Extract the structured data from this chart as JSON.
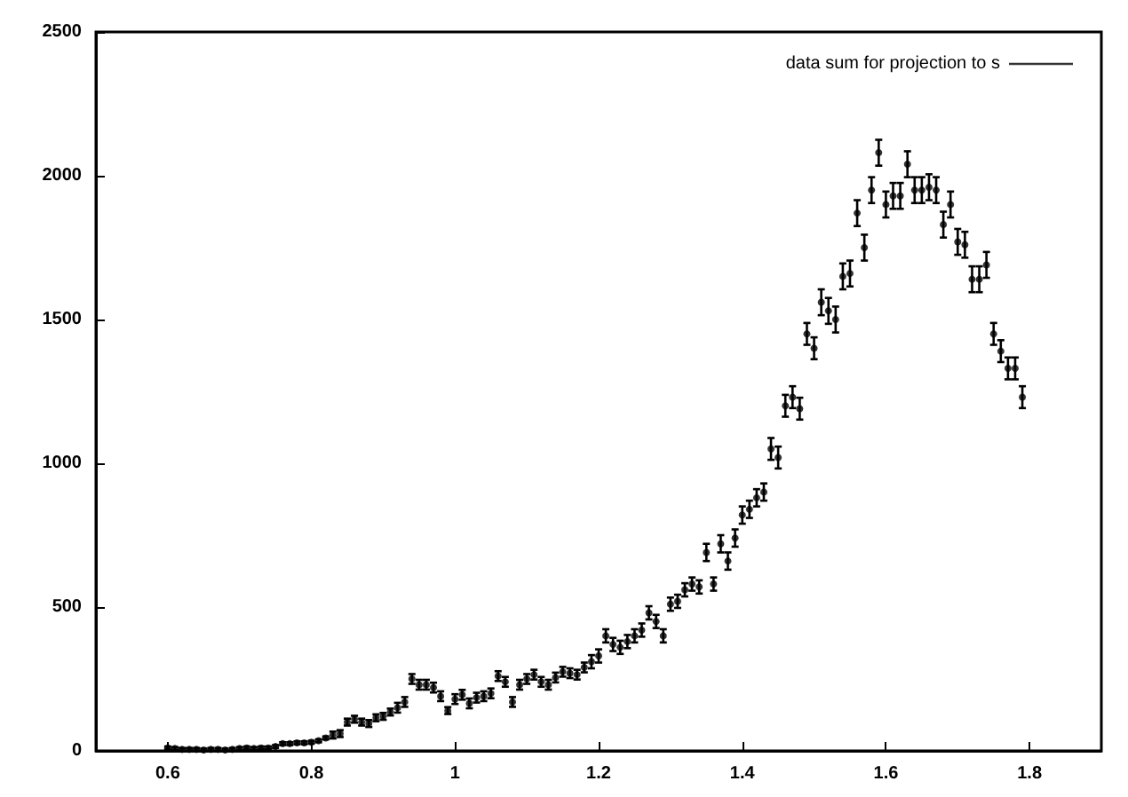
{
  "chart_data": {
    "type": "scatter",
    "x": [
      0.6,
      0.61,
      0.62,
      0.63,
      0.64,
      0.65,
      0.66,
      0.67,
      0.68,
      0.69,
      0.7,
      0.71,
      0.72,
      0.73,
      0.74,
      0.75,
      0.76,
      0.77,
      0.78,
      0.79,
      0.8,
      0.81,
      0.82,
      0.83,
      0.84,
      0.85,
      0.86,
      0.87,
      0.88,
      0.89,
      0.9,
      0.91,
      0.92,
      0.93,
      0.94,
      0.95,
      0.96,
      0.97,
      0.98,
      0.99,
      1.0,
      1.01,
      1.02,
      1.03,
      1.04,
      1.05,
      1.06,
      1.07,
      1.08,
      1.09,
      1.1,
      1.11,
      1.12,
      1.13,
      1.14,
      1.15,
      1.16,
      1.17,
      1.18,
      1.19,
      1.2,
      1.21,
      1.22,
      1.23,
      1.24,
      1.25,
      1.26,
      1.27,
      1.28,
      1.29,
      1.3,
      1.31,
      1.32,
      1.33,
      1.34,
      1.35,
      1.36,
      1.37,
      1.38,
      1.39,
      1.4,
      1.41,
      1.42,
      1.43,
      1.44,
      1.45,
      1.46,
      1.47,
      1.48,
      1.49,
      1.5,
      1.51,
      1.52,
      1.53,
      1.54,
      1.55,
      1.56,
      1.57,
      1.58,
      1.59,
      1.6,
      1.61,
      1.62,
      1.63,
      1.64,
      1.65,
      1.66,
      1.67,
      1.68,
      1.69,
      1.7,
      1.71,
      1.72,
      1.73,
      1.74,
      1.75,
      1.76,
      1.77,
      1.78,
      1.79
    ],
    "series": [
      {
        "name": "data sum for projection to s",
        "color": "#000000",
        "values": [
          10,
          8,
          5,
          5,
          5,
          3,
          5,
          5,
          3,
          5,
          8,
          10,
          8,
          10,
          10,
          15,
          25,
          25,
          28,
          28,
          30,
          35,
          45,
          55,
          60,
          100,
          110,
          100,
          95,
          115,
          120,
          135,
          150,
          170,
          250,
          230,
          230,
          220,
          190,
          140,
          180,
          195,
          165,
          185,
          190,
          200,
          260,
          240,
          170,
          230,
          250,
          265,
          240,
          230,
          255,
          275,
          270,
          265,
          290,
          310,
          330,
          400,
          370,
          360,
          380,
          400,
          420,
          480,
          450,
          400,
          510,
          520,
          560,
          580,
          570,
          690,
          580,
          720,
          660,
          740,
          820,
          840,
          880,
          900,
          1050,
          1020,
          1200,
          1230,
          1190,
          1450,
          1400,
          1560,
          1530,
          1500,
          1650,
          1660,
          1870,
          1750,
          1950,
          2080,
          1900,
          1930,
          1930,
          2040,
          1950,
          1950,
          1960,
          1950,
          1830,
          1900,
          1770,
          1760,
          1640,
          1640,
          1690,
          1450,
          1390,
          1330,
          1330,
          1230
        ],
        "errors": [
          5,
          5,
          5,
          5,
          5,
          5,
          5,
          5,
          5,
          5,
          5,
          5,
          5,
          5,
          5,
          5,
          5,
          5,
          5,
          5,
          5,
          5,
          5,
          12,
          12,
          12,
          12,
          12,
          12,
          12,
          12,
          12,
          17,
          17,
          17,
          17,
          17,
          17,
          17,
          12,
          17,
          17,
          17,
          17,
          17,
          17,
          17,
          17,
          17,
          17,
          17,
          17,
          17,
          17,
          17,
          17,
          17,
          17,
          17,
          23,
          23,
          23,
          23,
          23,
          23,
          23,
          23,
          23,
          23,
          23,
          23,
          23,
          23,
          23,
          23,
          30,
          23,
          30,
          30,
          30,
          30,
          30,
          30,
          30,
          38,
          38,
          38,
          38,
          38,
          38,
          38,
          45,
          45,
          45,
          45,
          45,
          45,
          45,
          45,
          45,
          45,
          45,
          45,
          45,
          45,
          45,
          45,
          45,
          45,
          45,
          45,
          45,
          45,
          45,
          45,
          38,
          38,
          38,
          38,
          38
        ]
      }
    ],
    "xlim": [
      0.5,
      1.9
    ],
    "xticks": [
      0.6,
      0.8,
      1,
      1.2,
      1.4,
      1.6,
      1.8
    ],
    "ylim": [
      0,
      2500
    ],
    "yticks": [
      0,
      500,
      1000,
      1500,
      2000,
      2500
    ],
    "grid": false,
    "legend": "top right",
    "marker": "circle"
  }
}
